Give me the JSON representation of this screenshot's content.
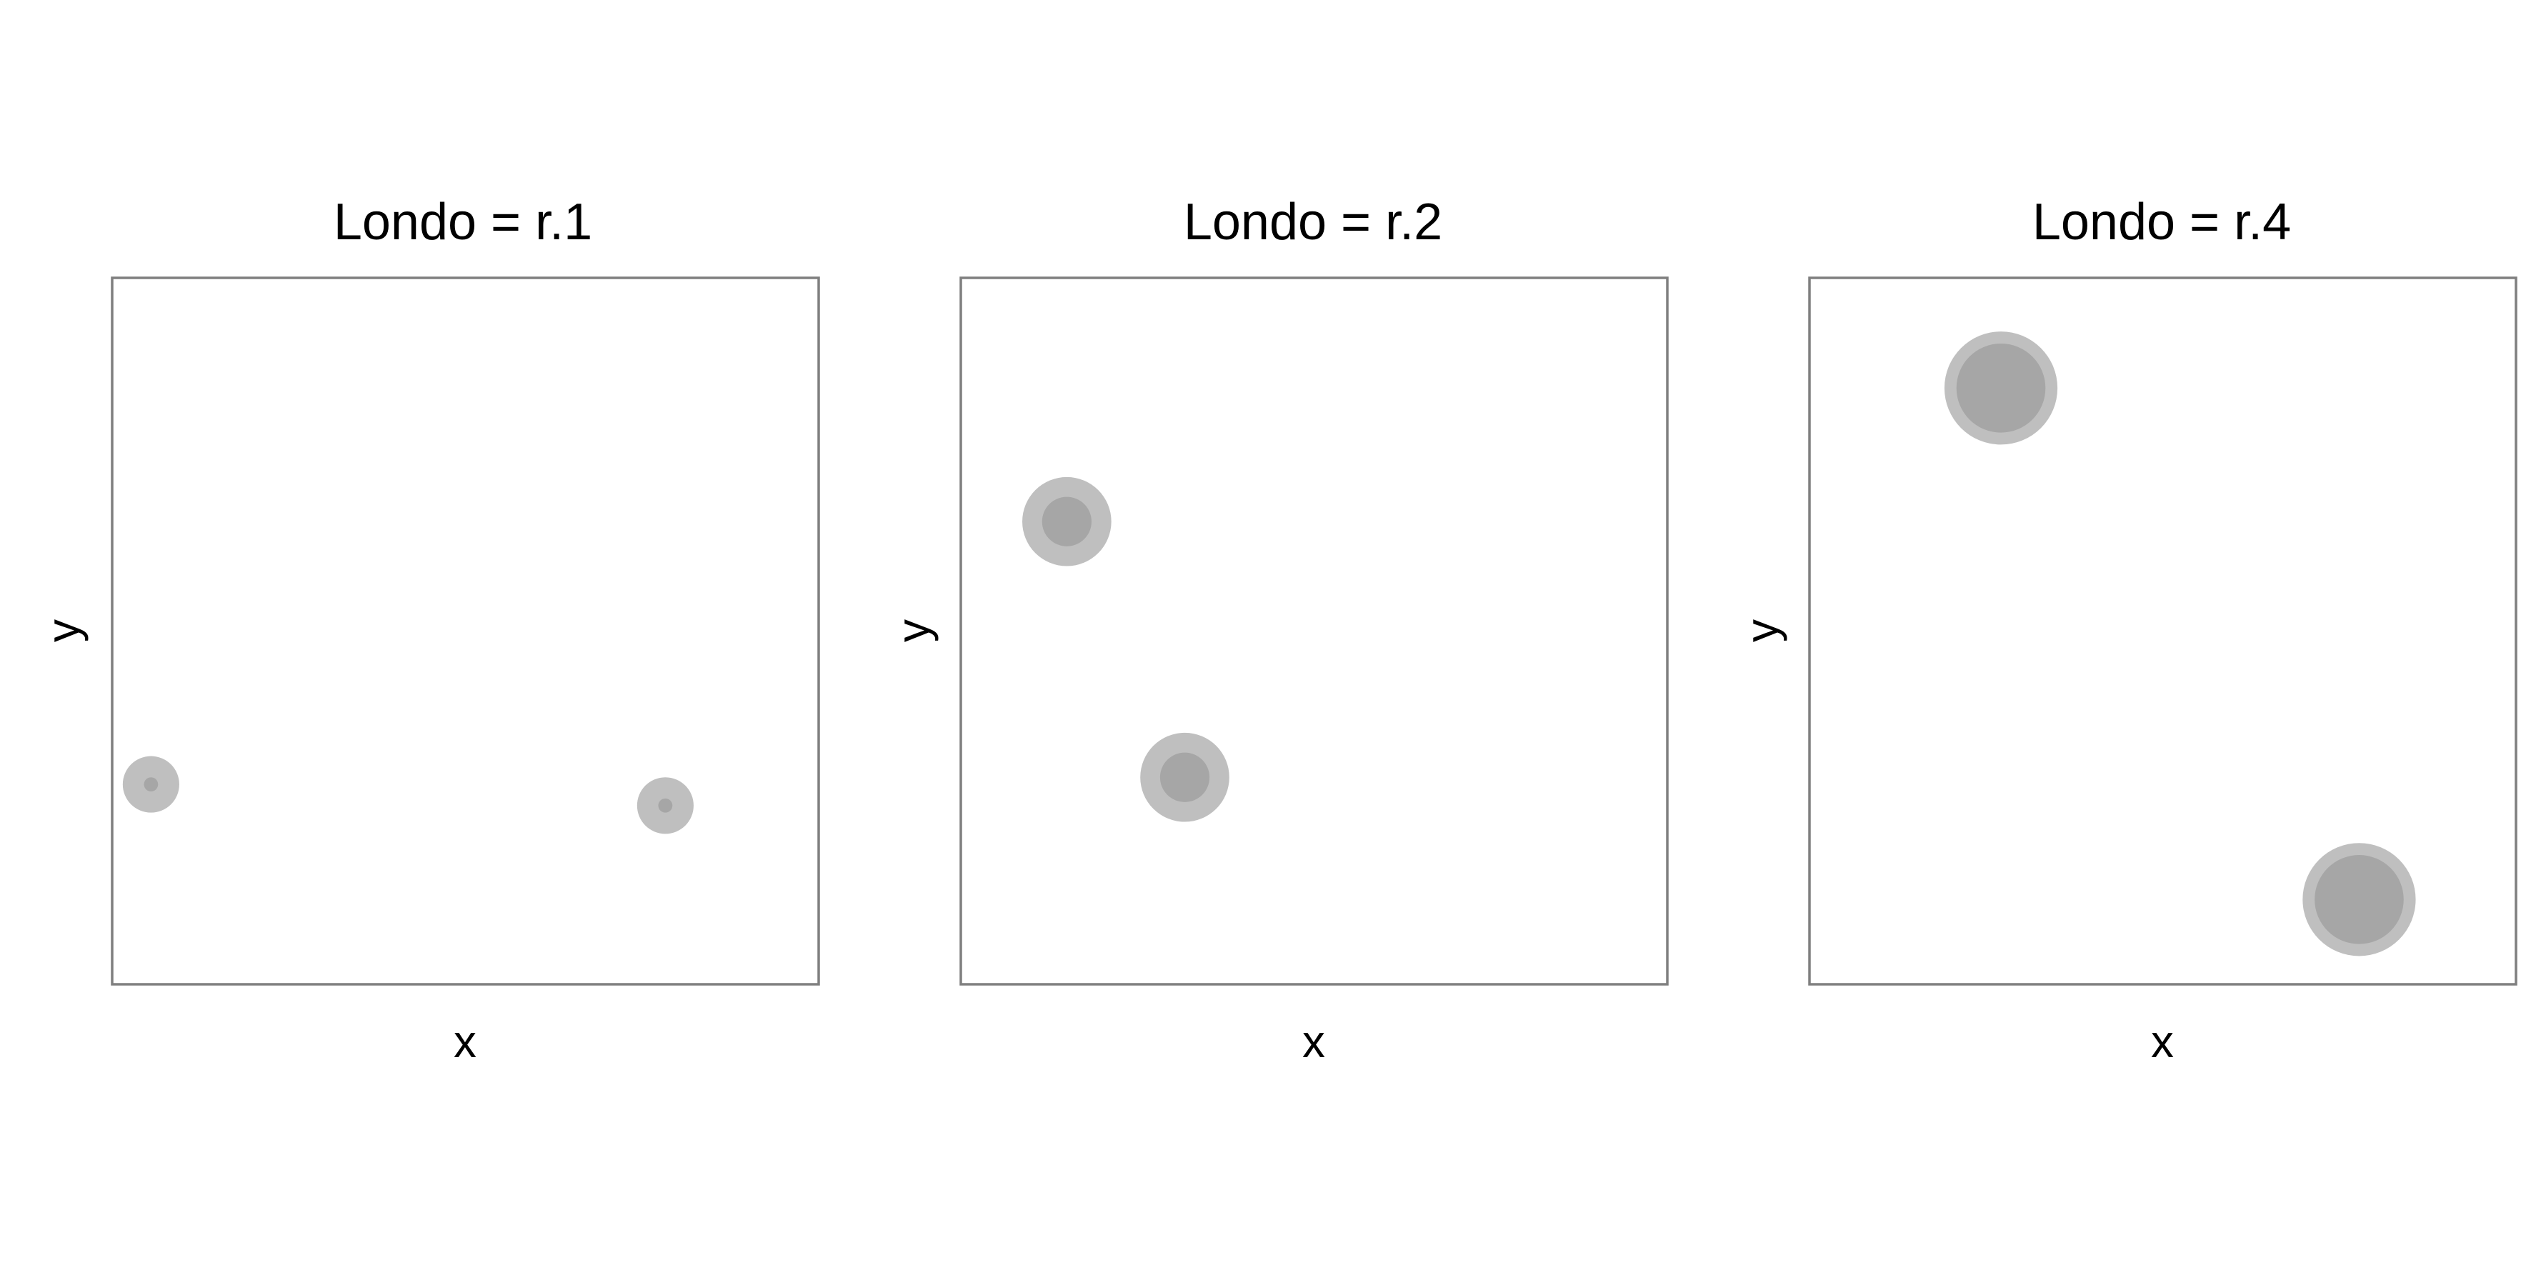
{
  "chart_data": {
    "type": "scatter",
    "facet_variable": "Londo",
    "xlim": [
      0,
      1
    ],
    "ylim": [
      0,
      1
    ],
    "grid": false,
    "colors": {
      "outer": "#bfbfbf",
      "inner": "#a6a6a6",
      "frame": "#7f7f7f"
    },
    "panels": [
      {
        "title": "Londo = r.1",
        "xlabel": "x",
        "ylabel": "y",
        "points": [
          {
            "x": 0.055,
            "y": 0.283,
            "outer_r": 0.04,
            "inner_r": 0.01
          },
          {
            "x": 0.783,
            "y": 0.253,
            "outer_r": 0.04,
            "inner_r": 0.01
          }
        ]
      },
      {
        "title": "Londo = r.2",
        "xlabel": "x",
        "ylabel": "y",
        "points": [
          {
            "x": 0.15,
            "y": 0.655,
            "outer_r": 0.063,
            "inner_r": 0.035
          },
          {
            "x": 0.317,
            "y": 0.293,
            "outer_r": 0.063,
            "inner_r": 0.035
          }
        ]
      },
      {
        "title": "Londo = r.4",
        "xlabel": "x",
        "ylabel": "y",
        "points": [
          {
            "x": 0.271,
            "y": 0.844,
            "outer_r": 0.08,
            "inner_r": 0.063
          },
          {
            "x": 0.778,
            "y": 0.12,
            "outer_r": 0.08,
            "inner_r": 0.063
          }
        ]
      }
    ]
  }
}
